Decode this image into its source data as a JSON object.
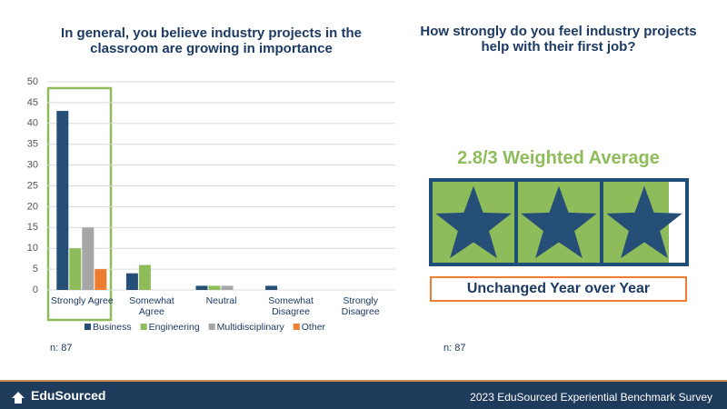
{
  "chart_data": {
    "type": "bar",
    "title": "In general, you believe industry projects in the classroom are growing in importance",
    "categories": [
      "Strongly Agree",
      "Somewhat Agree",
      "Neutral",
      "Somewhat Disagree",
      "Strongly Disagree"
    ],
    "series": [
      {
        "name": "Business",
        "color": "#264f78",
        "values": [
          43,
          4,
          1,
          1,
          0
        ]
      },
      {
        "name": "Engineering",
        "color": "#8fbc5a",
        "values": [
          10,
          6,
          1,
          0,
          0
        ]
      },
      {
        "name": "Multidisciplinary",
        "color": "#a6a6a6",
        "values": [
          15,
          0,
          1,
          0,
          0
        ]
      },
      {
        "name": "Other",
        "color": "#ed7d31",
        "values": [
          5,
          0,
          0,
          0,
          0
        ]
      }
    ],
    "ylim": [
      0,
      50
    ],
    "yticks": [
      0,
      5,
      10,
      15,
      20,
      25,
      30,
      35,
      40,
      45,
      50
    ],
    "grid": true,
    "legend": "bottom",
    "annotation": "n: 87"
  },
  "rating": {
    "question": "How strongly do you feel industry projects help with their first job?",
    "label": "2.8/3 Weighted Average",
    "value": 2.8,
    "max": 3,
    "trend": "Unchanged Year over Year",
    "annotation": "n: 87"
  },
  "footer": {
    "logo": "EduSourced",
    "title": "2023 EduSourced Experiential Benchmark Survey"
  }
}
